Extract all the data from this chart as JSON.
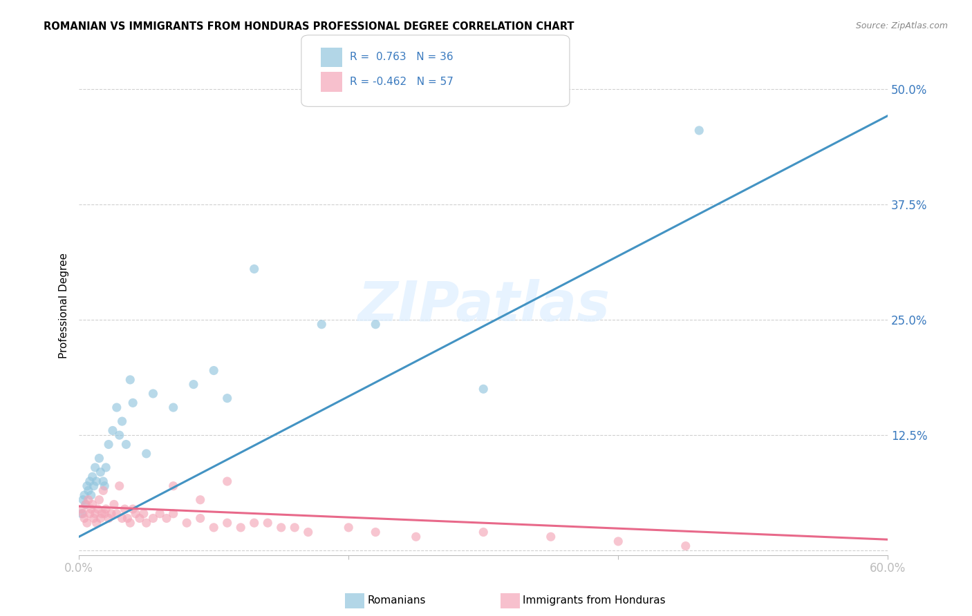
{
  "title": "ROMANIAN VS IMMIGRANTS FROM HONDURAS PROFESSIONAL DEGREE CORRELATION CHART",
  "source": "Source: ZipAtlas.com",
  "ylabel": "Professional Degree",
  "yticks": [
    0.0,
    0.125,
    0.25,
    0.375,
    0.5
  ],
  "ytick_labels": [
    "",
    "12.5%",
    "25.0%",
    "37.5%",
    "50.0%"
  ],
  "xlim": [
    0.0,
    0.6
  ],
  "ylim": [
    -0.005,
    0.535
  ],
  "watermark": "ZIPatlas",
  "legend_blue_r": "R =  0.763",
  "legend_blue_n": "N = 36",
  "legend_pink_r": "R = -0.462",
  "legend_pink_n": "N = 57",
  "legend_label_blue": "Romanians",
  "legend_label_pink": "Immigrants from Honduras",
  "blue_color": "#92c5de",
  "pink_color": "#f4a6b8",
  "blue_line_color": "#4393c3",
  "pink_line_color": "#e8698a",
  "blue_scatter_x": [
    0.002,
    0.003,
    0.004,
    0.005,
    0.006,
    0.007,
    0.008,
    0.009,
    0.01,
    0.011,
    0.012,
    0.013,
    0.015,
    0.016,
    0.018,
    0.019,
    0.02,
    0.022,
    0.025,
    0.028,
    0.03,
    0.032,
    0.035,
    0.038,
    0.04,
    0.05,
    0.055,
    0.07,
    0.085,
    0.1,
    0.11,
    0.13,
    0.18,
    0.22,
    0.3,
    0.46
  ],
  "blue_scatter_y": [
    0.04,
    0.055,
    0.06,
    0.05,
    0.07,
    0.065,
    0.075,
    0.06,
    0.08,
    0.07,
    0.09,
    0.075,
    0.1,
    0.085,
    0.075,
    0.07,
    0.09,
    0.115,
    0.13,
    0.155,
    0.125,
    0.14,
    0.115,
    0.185,
    0.16,
    0.105,
    0.17,
    0.155,
    0.18,
    0.195,
    0.165,
    0.305,
    0.245,
    0.245,
    0.175,
    0.455
  ],
  "pink_scatter_x": [
    0.002,
    0.003,
    0.004,
    0.005,
    0.006,
    0.007,
    0.008,
    0.009,
    0.01,
    0.011,
    0.012,
    0.013,
    0.014,
    0.015,
    0.016,
    0.017,
    0.018,
    0.019,
    0.02,
    0.022,
    0.024,
    0.026,
    0.028,
    0.03,
    0.032,
    0.034,
    0.036,
    0.038,
    0.04,
    0.042,
    0.045,
    0.048,
    0.05,
    0.055,
    0.06,
    0.065,
    0.07,
    0.08,
    0.09,
    0.1,
    0.11,
    0.12,
    0.13,
    0.15,
    0.17,
    0.2,
    0.25,
    0.3,
    0.4,
    0.45,
    0.07,
    0.09,
    0.11,
    0.14,
    0.16,
    0.22,
    0.35
  ],
  "pink_scatter_y": [
    0.045,
    0.04,
    0.035,
    0.05,
    0.03,
    0.055,
    0.04,
    0.045,
    0.05,
    0.035,
    0.04,
    0.03,
    0.045,
    0.055,
    0.035,
    0.04,
    0.065,
    0.04,
    0.045,
    0.035,
    0.04,
    0.05,
    0.04,
    0.07,
    0.035,
    0.045,
    0.035,
    0.03,
    0.045,
    0.04,
    0.035,
    0.04,
    0.03,
    0.035,
    0.04,
    0.035,
    0.04,
    0.03,
    0.035,
    0.025,
    0.03,
    0.025,
    0.03,
    0.025,
    0.02,
    0.025,
    0.015,
    0.02,
    0.01,
    0.005,
    0.07,
    0.055,
    0.075,
    0.03,
    0.025,
    0.02,
    0.015
  ],
  "blue_line_slope": 0.76,
  "blue_line_intercept": 0.015,
  "pink_line_slope": -0.06,
  "pink_line_intercept": 0.048,
  "background_color": "#ffffff",
  "grid_color": "#d0d0d0",
  "text_blue": "#3a7abf"
}
